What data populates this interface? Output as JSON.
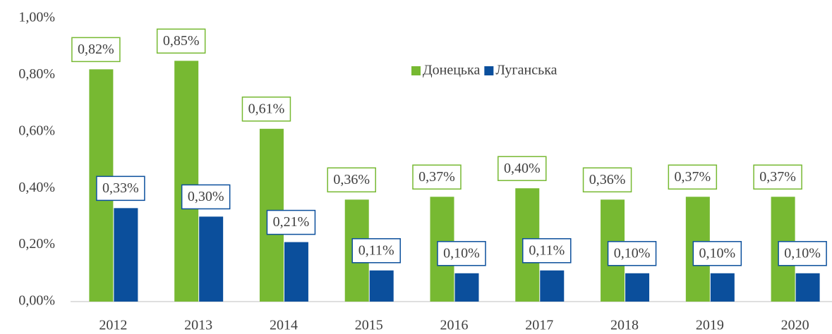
{
  "chart_data": {
    "type": "bar",
    "categories": [
      "2012",
      "2013",
      "2014",
      "2015",
      "2016",
      "2017",
      "2018",
      "2019",
      "2020"
    ],
    "series": [
      {
        "name": "Донецька",
        "color": "#77b932",
        "values": [
          0.82,
          0.85,
          0.61,
          0.36,
          0.37,
          0.4,
          0.36,
          0.37,
          0.37
        ],
        "value_labels": [
          "0,82%",
          "0,85%",
          "0,61%",
          "0,36%",
          "0,37%",
          "0,40%",
          "0,36%",
          "0,37%",
          "0,37%"
        ]
      },
      {
        "name": "Луганська",
        "color": "#0b4f9c",
        "values": [
          0.33,
          0.3,
          0.21,
          0.11,
          0.1,
          0.11,
          0.1,
          0.1,
          0.1
        ],
        "value_labels": [
          "0,33%",
          "0,30%",
          "0,21%",
          "0,11%",
          "0,10%",
          "0,11%",
          "0,10%",
          "0,10%",
          "0,10%"
        ]
      }
    ],
    "ylim": [
      0,
      1
    ],
    "yticks": [
      {
        "value": 0,
        "label": "0,00%"
      },
      {
        "value": 0.2,
        "label": "0,20%"
      },
      {
        "value": 0.4,
        "label": "0,40%"
      },
      {
        "value": 0.6,
        "label": "0,60%"
      },
      {
        "value": 0.8,
        "label": "0,80%"
      },
      {
        "value": 1,
        "label": "1,00%"
      }
    ],
    "grid": false,
    "legend": "top-center"
  }
}
